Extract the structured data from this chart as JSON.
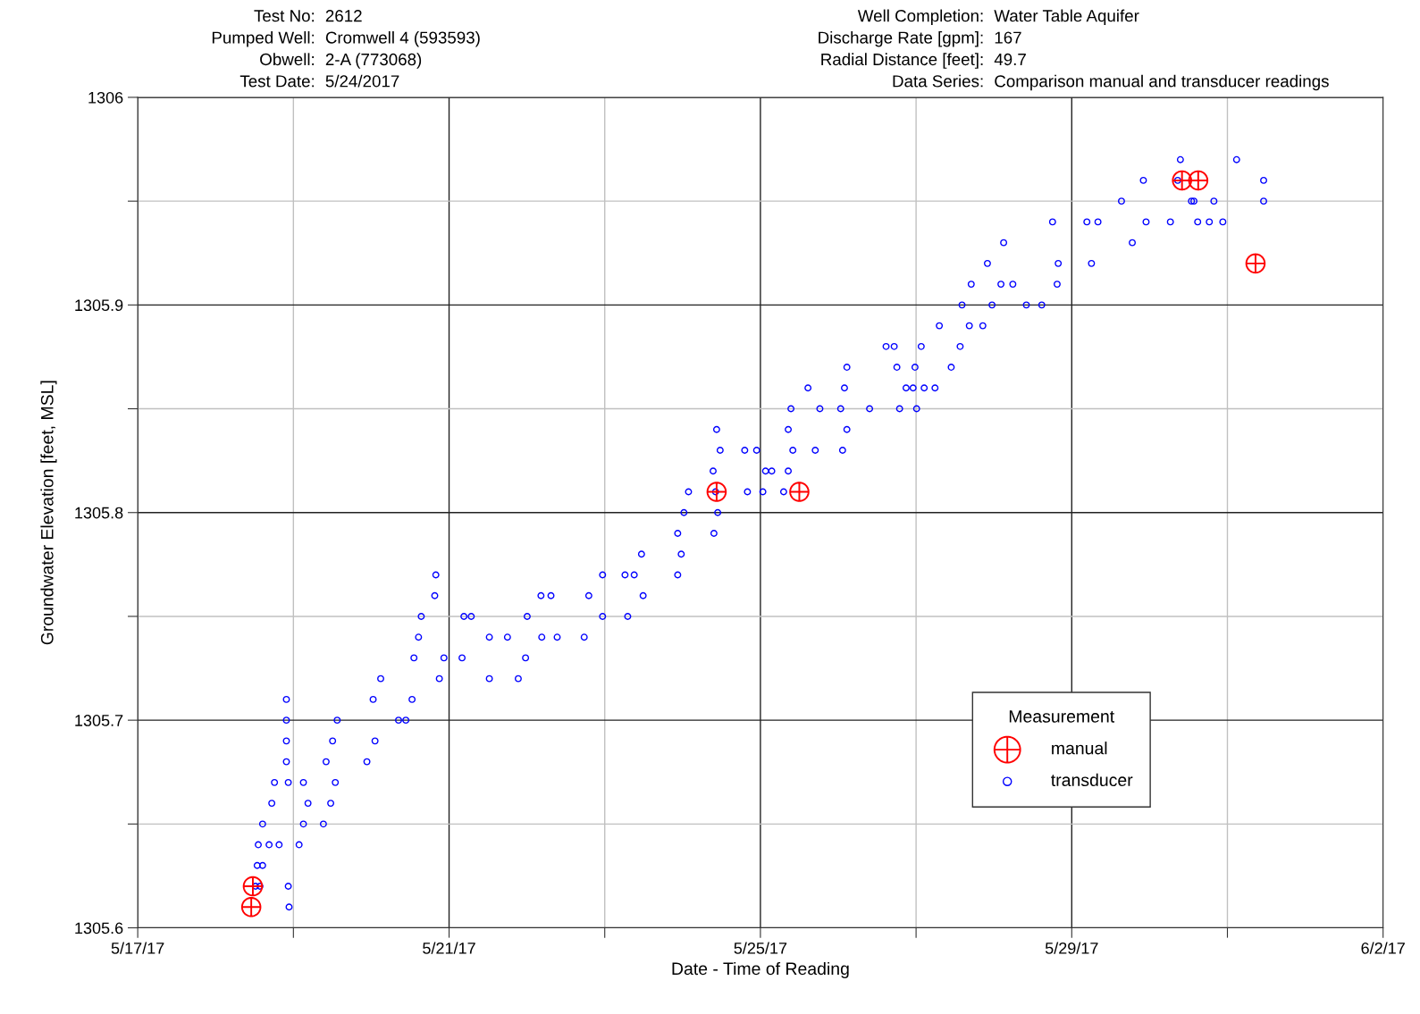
{
  "chart_data": {
    "type": "scatter",
    "xlabel": "Date - Time of Reading",
    "ylabel": "Groundwater Elevation [feet, MSL]",
    "annotations": [
      "Test No: 2612",
      "Pumped Well: Cromwell 4 (593593)",
      "Obwell: 2-A (773068)",
      "Test Date: 5/24/2017",
      "Well Completion: Water Table Aquifer",
      "Discharge Rate [gpm]: 167",
      "Radial Distance [feet]: 49.7",
      "Data Series: Comparison manual and transducer readings"
    ],
    "legend_title": "Measurement",
    "legend": "bottom right",
    "grid": true,
    "xlim": [
      "2017-05-17",
      "2017-06-02"
    ],
    "xticks": [
      {
        "value": "2017-05-17",
        "label": "5/17/17"
      },
      {
        "value": "2017-05-19",
        "label": null
      },
      {
        "value": "2017-05-21",
        "label": "5/21/17"
      },
      {
        "value": "2017-05-23",
        "label": null
      },
      {
        "value": "2017-05-25",
        "label": "5/25/17"
      },
      {
        "value": "2017-05-27",
        "label": null
      },
      {
        "value": "2017-05-29",
        "label": "5/29/17"
      },
      {
        "value": "2017-05-31",
        "label": null
      },
      {
        "value": "2017-06-02",
        "label": "6/2/17"
      }
    ],
    "ylim": [
      1305.6,
      1306
    ],
    "yticks": [
      1305.6,
      {
        "value": 1305.65,
        "label": null
      },
      1305.7,
      {
        "value": 1305.75,
        "label": null
      },
      1305.8,
      {
        "value": 1305.85,
        "label": null
      },
      1305.9,
      {
        "value": 1305.95,
        "label": null
      },
      1306
    ],
    "series": [
      {
        "name": "manual",
        "color": "#ff0000",
        "marker": "cross",
        "x": [
          "2017-05-18T11:30",
          "2017-05-18T11:00",
          "2017-05-24T10:30",
          "2017-05-25T12:00",
          "2017-05-30T10:00",
          "2017-05-30T15:00",
          "2017-05-31T08:40"
        ],
        "values": [
          1305.62,
          1305.61,
          1305.81,
          1305.81,
          1305.96,
          1305.96,
          1305.92
        ]
      },
      {
        "name": "transducer",
        "color": "#0000ff",
        "marker": "circle",
        "x": [
          "2017-05-18T12:20",
          "2017-05-18T13:40",
          "2017-05-18T12:50",
          "2017-05-18T14:30",
          "2017-05-18T13:10",
          "2017-05-18T16:30",
          "2017-05-18T14:30",
          "2017-05-18T17:20",
          "2017-05-18T18:10",
          "2017-05-18T19:35",
          "2017-05-18T21:50",
          "2017-05-18T21:50",
          "2017-05-18T21:50",
          "2017-05-18T21:50",
          "2017-05-18T22:25",
          "2017-05-18T22:25",
          "2017-05-18T22:40",
          "2017-05-19T03:05",
          "2017-05-19T01:45",
          "2017-05-19T11:30",
          "2017-05-19T04:30",
          "2017-05-19T03:05",
          "2017-05-19T12:55",
          "2017-05-19T09:15",
          "2017-05-19T10:05",
          "2017-05-19T22:40",
          "2017-05-19T12:05",
          "2017-05-20T01:10",
          "2017-05-19T13:30",
          "2017-05-20T08:25",
          "2017-05-20T10:40",
          "2017-05-20T00:35",
          "2017-05-20T12:35",
          "2017-05-20T02:55",
          "2017-05-20T21:00",
          "2017-05-20T13:10",
          "2017-05-20T22:25",
          "2017-05-20T14:35",
          "2017-05-21T12:25",
          "2017-05-20T15:25",
          "2017-05-21T04:35",
          "2017-05-21T06:50",
          "2017-05-20T19:35",
          "2017-05-20T19:55",
          "2017-05-21T04:00",
          "2017-05-21T23:35",
          "2017-05-21T12:25",
          "2017-05-21T21:20",
          "2017-05-21T18:00",
          "2017-05-22T04:35",
          "2017-05-22T00:05",
          "2017-05-22T23:20",
          "2017-05-22T04:20",
          "2017-05-22T07:25",
          "2017-05-22T09:20",
          "2017-05-22T17:40",
          "2017-05-22T19:05",
          "2017-05-23T11:50",
          "2017-05-22T23:20",
          "2017-05-23T06:15",
          "2017-05-23T07:05",
          "2017-05-23T09:05",
          "2017-05-23T22:30",
          "2017-05-23T11:20",
          "2017-05-23T23:35",
          "2017-05-23T22:30",
          "2017-05-24T09:40",
          "2017-05-24T00:25",
          "2017-05-24T10:50",
          "2017-05-24T01:50",
          "2017-05-24T10:10",
          "2017-05-24T10:30",
          "2017-05-24T09:25",
          "2017-05-25T01:35",
          "2017-05-24T11:35",
          "2017-05-24T19:10",
          "2017-05-24T20:00",
          "2017-05-25T00:45",
          "2017-05-25T07:10",
          "2017-05-24T22:50",
          "2017-05-25T10:00",
          "2017-05-25T03:30",
          "2017-05-25T08:35",
          "2017-05-25T08:35",
          "2017-05-26T02:40",
          "2017-05-25T09:25",
          "2017-05-25T18:20",
          "2017-05-25T14:40",
          "2017-05-25T16:55",
          "2017-05-26T01:20",
          "2017-05-26T00:45",
          "2017-05-26T09:40",
          "2017-05-26T01:55",
          "2017-05-26T20:55",
          "2017-05-26T02:40",
          "2017-05-26T18:05",
          "2017-05-26T14:45",
          "2017-05-26T17:15",
          "2017-05-26T18:55",
          "2017-05-27T00:10",
          "2017-05-26T23:05",
          "2017-05-27T02:30",
          "2017-05-27T05:50",
          "2017-05-26T23:40",
          "2017-05-27T10:50",
          "2017-05-27T01:35",
          "2017-05-27T13:35",
          "2017-05-27T07:10",
          "2017-05-27T16:25",
          "2017-05-27T20:35",
          "2017-05-27T14:10",
          "2017-05-27T23:25",
          "2017-05-27T17:00",
          "2017-05-28T02:10",
          "2017-05-27T22:00",
          "2017-05-28T19:50",
          "2017-05-28T03:00",
          "2017-05-29T18:40",
          "2017-05-28T05:50",
          "2017-05-28T19:30",
          "2017-05-28T10:00",
          "2017-05-28T14:45",
          "2017-05-28T18:05",
          "2017-05-29T04:40",
          "2017-05-29T06:05",
          "2017-05-29T08:05",
          "2017-05-29T22:55",
          "2017-05-29T15:20",
          "2017-05-30T12:55",
          "2017-05-29T22:05",
          "2017-05-30T08:40",
          "2017-05-31T11:10",
          "2017-05-30T09:30",
          "2017-05-31T02:50",
          "2017-05-30T06:25",
          "2017-05-30T14:50",
          "2017-05-30T18:25",
          "2017-05-30T22:35",
          "2017-05-30T13:40",
          "2017-05-30T19:50",
          "2017-05-31T11:10"
        ],
        "values": [
          1305.62,
          1305.62,
          1305.63,
          1305.63,
          1305.64,
          1305.64,
          1305.65,
          1305.66,
          1305.67,
          1305.64,
          1305.71,
          1305.7,
          1305.69,
          1305.68,
          1305.67,
          1305.62,
          1305.61,
          1305.65,
          1305.64,
          1305.66,
          1305.66,
          1305.67,
          1305.67,
          1305.65,
          1305.68,
          1305.68,
          1305.69,
          1305.69,
          1305.7,
          1305.7,
          1305.7,
          1305.71,
          1305.71,
          1305.72,
          1305.72,
          1305.73,
          1305.73,
          1305.74,
          1305.74,
          1305.75,
          1305.75,
          1305.75,
          1305.76,
          1305.77,
          1305.73,
          1305.73,
          1305.72,
          1305.72,
          1305.74,
          1305.74,
          1305.75,
          1305.75,
          1305.76,
          1305.76,
          1305.74,
          1305.74,
          1305.76,
          1305.76,
          1305.77,
          1305.77,
          1305.75,
          1305.77,
          1305.77,
          1305.78,
          1305.78,
          1305.79,
          1305.79,
          1305.8,
          1305.8,
          1305.81,
          1305.81,
          1305.84,
          1305.82,
          1305.82,
          1305.83,
          1305.83,
          1305.81,
          1305.81,
          1305.81,
          1305.83,
          1305.83,
          1305.82,
          1305.82,
          1305.84,
          1305.84,
          1305.85,
          1305.85,
          1305.86,
          1305.83,
          1305.83,
          1305.85,
          1305.85,
          1305.86,
          1305.86,
          1305.87,
          1305.87,
          1305.88,
          1305.88,
          1305.85,
          1305.85,
          1305.86,
          1305.86,
          1305.86,
          1305.87,
          1305.87,
          1305.88,
          1305.88,
          1305.89,
          1305.89,
          1305.89,
          1305.9,
          1305.9,
          1305.91,
          1305.91,
          1305.92,
          1305.92,
          1305.93,
          1305.93,
          1305.91,
          1305.91,
          1305.9,
          1305.9,
          1305.94,
          1305.94,
          1305.92,
          1305.94,
          1305.94,
          1305.95,
          1305.95,
          1305.96,
          1305.96,
          1305.96,
          1305.97,
          1305.97,
          1305.94,
          1305.94,
          1305.94,
          1305.94,
          1305.95,
          1305.95,
          1305.95
        ]
      }
    ]
  }
}
